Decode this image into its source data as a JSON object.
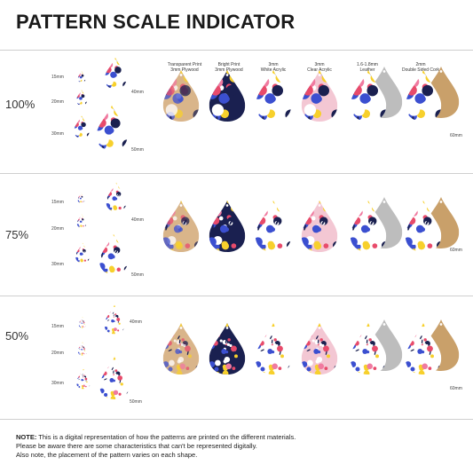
{
  "title": "PATTERN SCALE INDICATOR",
  "materials": [
    "Transparent Print\n3mm Plywood",
    "Bright Print\n3mm Plywood",
    "3mm\nWhite Acrylic",
    "3mm\nClear Acrylic",
    "1.6-1.8mm\nLeather",
    "2mm\nDouble Sided Cork"
  ],
  "rows": [
    {
      "scale": "100%",
      "sizes": [
        "15mm",
        "20mm",
        "30mm",
        "40mm",
        "50mm"
      ],
      "big_size": "60mm"
    },
    {
      "scale": "75%",
      "sizes": [
        "15mm",
        "20mm",
        "30mm",
        "40mm",
        "50mm"
      ],
      "big_size": "60mm"
    },
    {
      "scale": "50%",
      "sizes": [
        "15mm",
        "20mm",
        "30mm",
        "40mm",
        "50mm"
      ],
      "big_size": "60mm"
    }
  ],
  "note": {
    "label": "NOTE:",
    "line1": "This is a digital representation of how the patterns are printed on the different materials.",
    "line2": "Please be aware there are some characteristics that can't be represented digitally.",
    "line3": "Also note, the placement of the pattern varies on each shape."
  },
  "colors": {
    "pattern_pink": "#f07aa0",
    "pattern_blue": "#3b4fd0",
    "pattern_yellow": "#f7d02c",
    "pattern_navy": "#1a2050",
    "leather": "#bdbdbd",
    "cork": "#c9a06a",
    "plywood": "#d9b58a"
  }
}
